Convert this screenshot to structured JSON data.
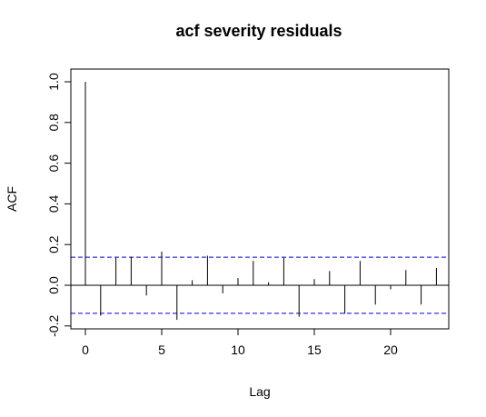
{
  "chart_data": {
    "type": "bar",
    "title": "acf severity residuals",
    "xlabel": "Lag",
    "ylabel": "ACF",
    "xlim": [
      -1,
      24
    ],
    "ylim": [
      -0.2,
      1.07
    ],
    "x_ticks": [
      0,
      5,
      10,
      15,
      20
    ],
    "y_ticks": [
      -0.2,
      0.0,
      0.2,
      0.4,
      0.6,
      0.8,
      1.0
    ],
    "x_tick_labels": [
      "0",
      "5",
      "10",
      "15",
      "20"
    ],
    "y_tick_labels": [
      "-0.2",
      "0.0",
      "0.2",
      "0.4",
      "0.6",
      "0.8",
      "1.0"
    ],
    "lags": [
      0,
      1,
      2,
      3,
      4,
      5,
      6,
      7,
      8,
      9,
      10,
      11,
      12,
      13,
      14,
      15,
      16,
      17,
      18,
      19,
      20,
      21,
      22,
      23
    ],
    "values": [
      1.0,
      -0.15,
      0.135,
      0.14,
      -0.05,
      0.165,
      -0.17,
      0.025,
      0.145,
      -0.04,
      0.035,
      0.12,
      0.015,
      0.135,
      -0.155,
      0.03,
      0.07,
      -0.14,
      0.12,
      -0.095,
      -0.02,
      0.075,
      -0.095,
      0.085
    ],
    "confidence_bound": 0.138,
    "confidence_color": "#0000cc",
    "grid": false
  }
}
